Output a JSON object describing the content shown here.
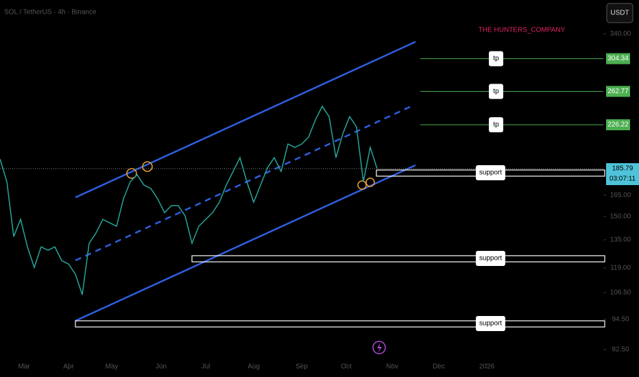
{
  "chart_data": {
    "type": "line",
    "title": "SOL / TetherUS · 4h · Binance",
    "watermark": "THE HUNTERS_COMPANY",
    "currency_button": "USDT",
    "log_scale": true,
    "series": [
      {
        "name": "SOL / TetherUS",
        "color": "#26a69a",
        "values": [
          194.0,
          175.2,
          137.0,
          148.0,
          130.8,
          119.3,
          130.8,
          128.8,
          130.8,
          123.0,
          121.1,
          115.7,
          105.5,
          132.9,
          139.2,
          148.0,
          145.7,
          143.5,
          162.2,
          175.2,
          180.8,
          172.6,
          170.0,
          162.2,
          152.5,
          157.4,
          157.4,
          150.3,
          132.9,
          143.5,
          148.0,
          152.5,
          159.8,
          172.6,
          183.5,
          195.2,
          175.2,
          159.8,
          172.6,
          186.4,
          195.2,
          183.5,
          207.5,
          204.4,
          207.5,
          214.0,
          231.2,
          245.8,
          234.7,
          195.2,
          217.4,
          234.7,
          224.1,
          175.2,
          204.4,
          185.79
        ]
      }
    ],
    "xlim": [
      0,
      88
    ],
    "xticks": [
      {
        "value": 3.5,
        "label": "Mar"
      },
      {
        "value": 10,
        "label": "Apr"
      },
      {
        "value": 16.3,
        "label": "May"
      },
      {
        "value": 23.5,
        "label": "Jun"
      },
      {
        "value": 30,
        "label": "Jul"
      },
      {
        "value": 37,
        "label": "Aug"
      },
      {
        "value": 44,
        "label": "Sep"
      },
      {
        "value": 50.5,
        "label": "Oct"
      },
      {
        "value": 57.2,
        "label": "Nov"
      },
      {
        "value": 64,
        "label": "Dec"
      },
      {
        "value": 71,
        "label": "2026"
      }
    ],
    "ylim": [
      80,
      396
    ],
    "yticks": [
      {
        "value": 340,
        "label": "340.00"
      },
      {
        "value": 165,
        "label": "165.00"
      },
      {
        "value": 150,
        "label": "150.00"
      },
      {
        "value": 135,
        "label": "135.00"
      },
      {
        "value": 119,
        "label": "119.00"
      },
      {
        "value": 106.5,
        "label": "106.50"
      },
      {
        "value": 94.5,
        "label": "94.50"
      },
      {
        "value": 82.5,
        "label": "82.50"
      }
    ],
    "current_price": 185.79,
    "countdown": "03:07:11",
    "targets": [
      {
        "label": "tp",
        "value": 304.34
      },
      {
        "label": "tp",
        "value": 262.77
      },
      {
        "label": "tp",
        "value": 226.22
      }
    ],
    "supports": [
      {
        "label": "support"
      },
      {
        "label": "support"
      },
      {
        "label": "support"
      }
    ]
  }
}
